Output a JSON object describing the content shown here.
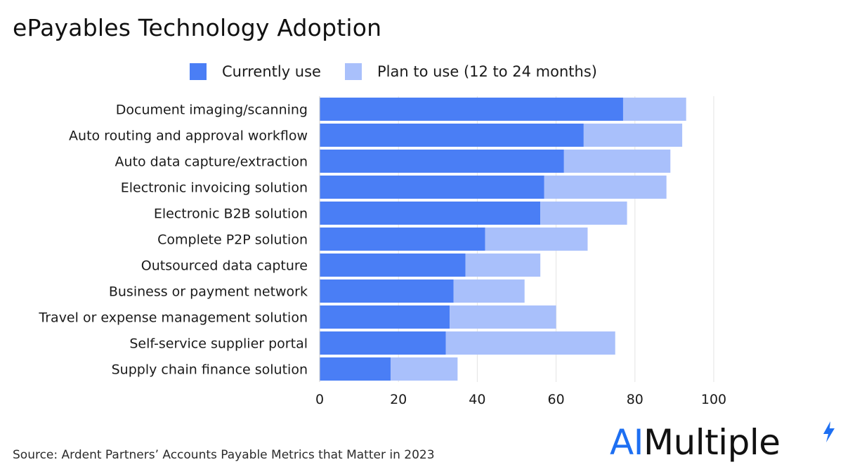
{
  "chart_data": {
    "type": "bar",
    "orientation": "horizontal",
    "stacked": true,
    "title": "ePayables Technology Adoption",
    "categories": [
      "Document imaging/scanning",
      "Auto routing and approval workflow",
      "Auto data capture/extraction",
      "Electronic invoicing solution",
      "Electronic B2B solution",
      "Complete P2P solution",
      "Outsourced data capture",
      "Business or payment network",
      "Travel or expense management solution",
      "Self-service supplier portal",
      "Supply chain finance solution"
    ],
    "series": [
      {
        "name": "Currently use",
        "color": "#4a7ef5",
        "values": [
          77,
          67,
          62,
          57,
          56,
          42,
          37,
          34,
          33,
          32,
          18
        ]
      },
      {
        "name": "Plan to use (12 to 24 months)",
        "color": "#a9c0fb",
        "values": [
          16,
          25,
          27,
          31,
          22,
          26,
          19,
          18,
          27,
          43,
          17
        ]
      }
    ],
    "xlim": [
      0,
      100
    ],
    "xticks": [
      "0",
      "20",
      "40",
      "60",
      "80",
      "100"
    ],
    "xlabel": "",
    "ylabel": "",
    "grid": "vertical",
    "legend_position": "top"
  },
  "source": "Source: Ardent Partners’ Accounts Payable Metrics that Matter in 2023",
  "logo": {
    "part1": "AI",
    "part2": "Multiple"
  }
}
